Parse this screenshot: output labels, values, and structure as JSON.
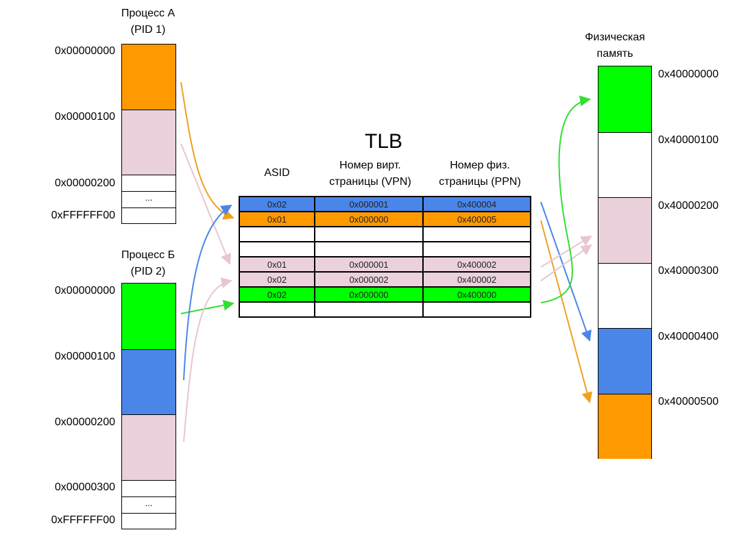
{
  "colors": {
    "orange": "#ff9900",
    "pink": "#ead1dc",
    "green": "#00ff00",
    "blue": "#4a86e8",
    "white": "#ffffff"
  },
  "process_a": {
    "title_line1": "Процесс А",
    "title_line2": "(PID 1)",
    "addresses": [
      "0x00000000",
      "0x00000100",
      "0x00000200",
      "0xFFFFFF00"
    ],
    "ellipsis": "..."
  },
  "process_b": {
    "title_line1": "Процесс Б",
    "title_line2": "(PID 2)",
    "addresses": [
      "0x00000000",
      "0x00000100",
      "0x00000200",
      "0x00000300",
      "0xFFFFFF00"
    ],
    "ellipsis": "..."
  },
  "tlb": {
    "title": "TLB",
    "headers": {
      "asid": "ASID",
      "vpn_line1": "Номер вирт.",
      "vpn_line2": "страницы (VPN)",
      "ppn_line1": "Номер физ.",
      "ppn_line2": "страницы (PPN)"
    },
    "rows": [
      {
        "color": "#4a86e8",
        "asid": "0x02",
        "vpn": "0x000001",
        "ppn": "0x400004"
      },
      {
        "color": "#ff9900",
        "asid": "0x01",
        "vpn": "0x000000",
        "ppn": "0x400005"
      },
      {
        "color": "#ffffff",
        "asid": "",
        "vpn": "",
        "ppn": ""
      },
      {
        "color": "#ffffff",
        "asid": "",
        "vpn": "",
        "ppn": ""
      },
      {
        "color": "#ead1dc",
        "asid": "0x01",
        "vpn": "0x000001",
        "ppn": "0x400002"
      },
      {
        "color": "#ead1dc",
        "asid": "0x02",
        "vpn": "0x000002",
        "ppn": "0x400002"
      },
      {
        "color": "#00ff00",
        "asid": "0x02",
        "vpn": "0x000000",
        "ppn": "0x400000"
      },
      {
        "color": "#ffffff",
        "asid": "",
        "vpn": "",
        "ppn": ""
      }
    ]
  },
  "physical": {
    "title_line1": "Физическая",
    "title_line2": "память",
    "addresses": [
      "0x40000000",
      "0x40000100",
      "0x40000200",
      "0x40000300",
      "0x40000400",
      "0x40000500"
    ]
  }
}
